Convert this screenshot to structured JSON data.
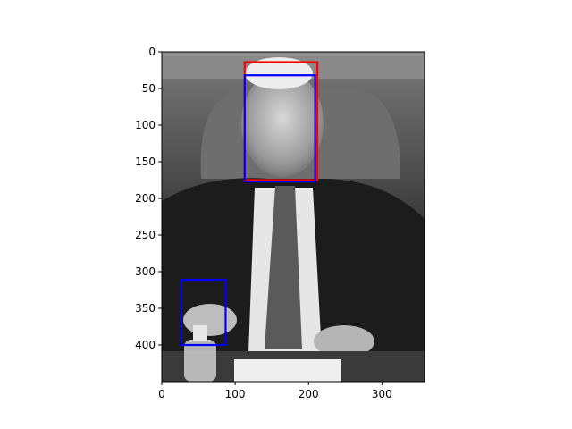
{
  "image": {
    "width": 358,
    "height": 450,
    "colors": {
      "background": "#ffffff",
      "axis": "#000000"
    }
  },
  "axes": {
    "x_ticks": [
      0,
      100,
      200,
      300
    ],
    "y_ticks": [
      0,
      50,
      100,
      150,
      200,
      250,
      300,
      350,
      400
    ],
    "xlim": [
      0,
      358
    ],
    "ylim": [
      450,
      0
    ]
  },
  "boxes": [
    {
      "color": "#ff0000",
      "x1": 113,
      "y1": 14,
      "x2": 212,
      "y2": 175
    },
    {
      "color": "#0000ff",
      "x1": 113,
      "y1": 32,
      "x2": 209,
      "y2": 177
    },
    {
      "color": "#0000ff",
      "x1": 26,
      "y1": 311,
      "x2": 87,
      "y2": 400
    }
  ]
}
